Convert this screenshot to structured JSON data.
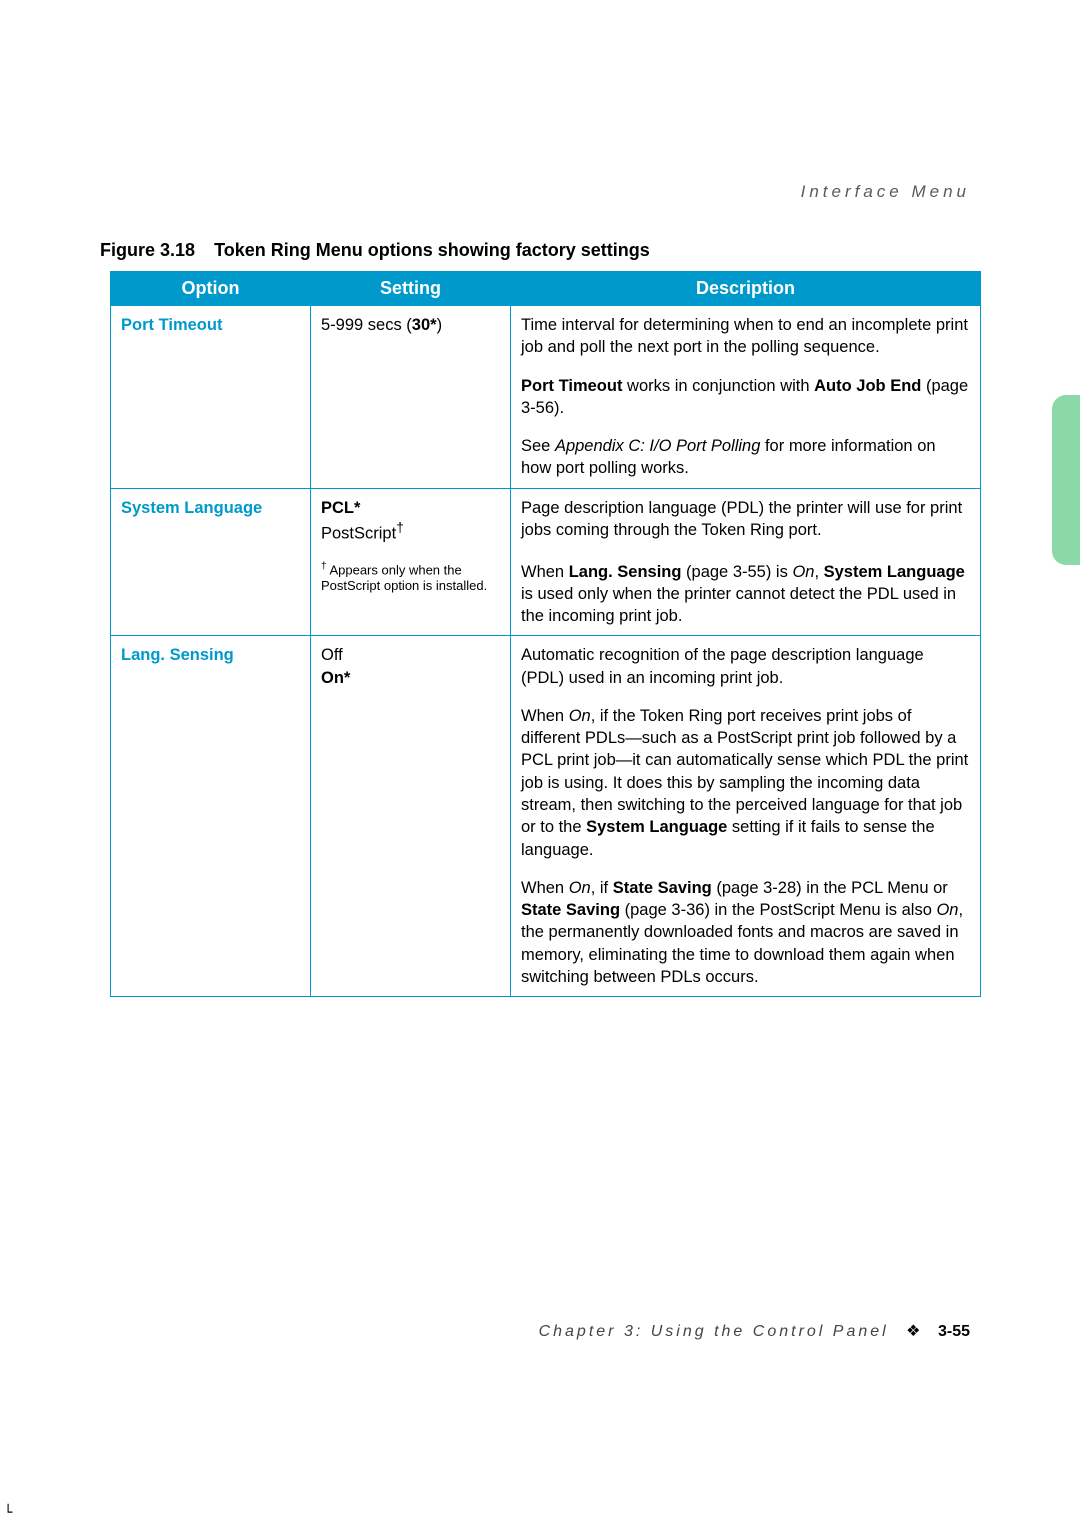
{
  "running_head": "Interface Menu",
  "figure": {
    "number": "Figure 3.18",
    "title": "Token Ring Menu options showing factory settings"
  },
  "table": {
    "headers": {
      "option": "Option",
      "setting": "Setting",
      "description": "Description"
    },
    "rows": [
      {
        "option": "Port Timeout",
        "setting_prefix": "5-999 secs (",
        "setting_bold": "30*",
        "setting_suffix": ")",
        "descs": [
          {
            "text": "Time interval for determining when to end an incomplete print job and poll the next port in the polling sequence."
          },
          {
            "html": "<b>Port Timeout</b> works in conjunction with <b>Auto Job End</b> (page 3-56)."
          },
          {
            "html": "See <i>Appendix C: I/O Port Polling</i> for more information on how port polling works."
          }
        ]
      },
      {
        "option": "System Language",
        "setting_lines": [
          {
            "html": "<b>PCL*</b>"
          },
          {
            "html": "PostScript<sup>†</sup>"
          }
        ],
        "footnote_html": "<sup>†</sup> Appears only when the PostScript option is installed.",
        "descs": [
          {
            "text": "Page description language (PDL) the printer will use for print jobs coming through the Token Ring port."
          },
          {
            "html": "When <b>Lang. Sensing</b> (page 3-55) is <i>On</i>, <b>System Language</b> is used only when the printer cannot detect the PDL used in the incoming print job."
          }
        ]
      },
      {
        "option": "Lang. Sensing",
        "setting_lines": [
          {
            "text": "Off"
          },
          {
            "html": "<b>On*</b>"
          }
        ],
        "descs": [
          {
            "text": "Automatic recognition of the page description language (PDL) used in an incoming print job."
          },
          {
            "html": "When <i>On</i>, if the Token Ring port receives print jobs of different PDLs—such as a PostScript print job followed by a PCL print job—it can automatically sense which PDL the print job is using. It does this by sampling the incoming data stream, then switching to the perceived language for that job or to the <b>System Language</b> setting if it fails to sense the language."
          },
          {
            "html": "When <i>On</i>, if <b>State Saving</b> (page 3-28) in the PCL Menu or <b>State Saving</b> (page 3-36) in the PostScript Menu is also <i>On</i>, the permanently downloaded fonts and macros are saved in memory, eliminating the time to download them again when switching between PDLs occurs."
          }
        ]
      }
    ]
  },
  "footer": {
    "chapter": "Chapter 3: Using the Control Panel",
    "page": "3-55",
    "diamond": "❖"
  }
}
